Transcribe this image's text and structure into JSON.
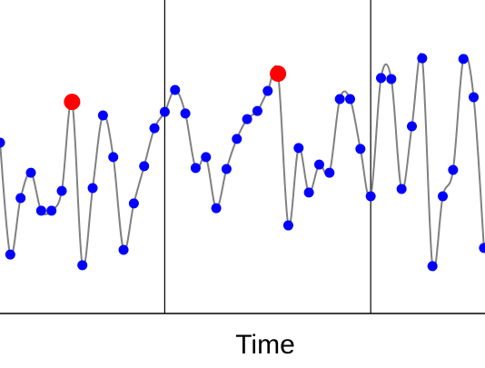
{
  "chart_data": {
    "type": "line",
    "x_label": "Time",
    "x": [
      0,
      1,
      2,
      3,
      4,
      5,
      6,
      7,
      8,
      9,
      10,
      11,
      12,
      13,
      14,
      15,
      16,
      17,
      18,
      19,
      20,
      21,
      22,
      23,
      24,
      25,
      26,
      27,
      28,
      29,
      30,
      31,
      32,
      33,
      34,
      35,
      36,
      37,
      38,
      39,
      40,
      41,
      42,
      43,
      44,
      45,
      46,
      47
    ],
    "values": [
      54.5,
      18.8,
      36.8,
      44.9,
      32.8,
      32.8,
      39.1,
      67.5,
      15.4,
      40,
      63.2,
      49.9,
      20.3,
      35.1,
      47,
      59.1,
      64.3,
      71.3,
      63.8,
      46.4,
      49.9,
      33.6,
      46.1,
      55.7,
      62,
      64.6,
      71,
      76.5,
      28.1,
      52.8,
      38.6,
      47.5,
      44.9,
      68.4,
      68.4,
      52.5,
      37.4,
      75.1,
      74.8,
      39.7,
      59.7,
      81.4,
      15.1,
      37.4,
      45.8,
      81.2,
      69,
      20.9
    ],
    "line_color": "#808080",
    "point_color": "#0000ff",
    "highlight_color": "#ff0000",
    "highlighted": [
      false,
      false,
      false,
      false,
      false,
      false,
      false,
      true,
      false,
      false,
      false,
      false,
      false,
      false,
      false,
      false,
      false,
      false,
      false,
      false,
      false,
      false,
      false,
      false,
      false,
      false,
      false,
      true,
      false,
      false,
      false,
      false,
      false,
      false,
      false,
      false,
      false,
      false,
      false,
      false,
      false,
      false,
      false,
      false,
      false,
      false,
      false,
      false
    ],
    "vlines": [
      16,
      36
    ],
    "xlim": [
      0,
      47.1
    ],
    "ylim": [
      0,
      100
    ]
  }
}
